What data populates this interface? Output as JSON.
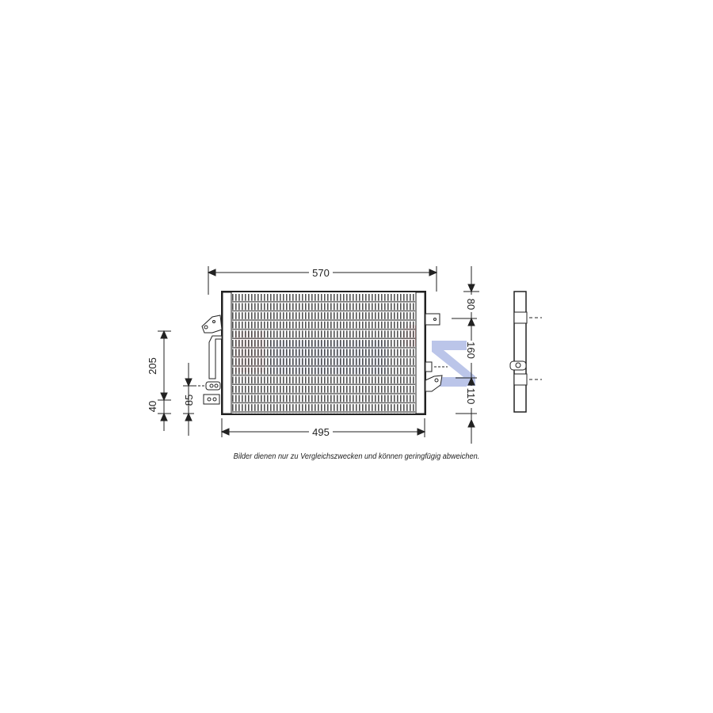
{
  "diagram": {
    "dimensions": {
      "overall_width": "570",
      "core_width": "495",
      "left_height": "205",
      "left_bottom": "40",
      "left_pipe": "85",
      "right_top": "80",
      "right_middle": "160",
      "right_bottom": "110"
    },
    "disclaimer": "Bilder dienen nur zu Vergleichszwecken und können geringfügig abweichen.",
    "watermark": {
      "text": "AKS",
      "colors": [
        "#e88a8a",
        "#8a9ad6"
      ]
    },
    "line_color": "#222222"
  }
}
